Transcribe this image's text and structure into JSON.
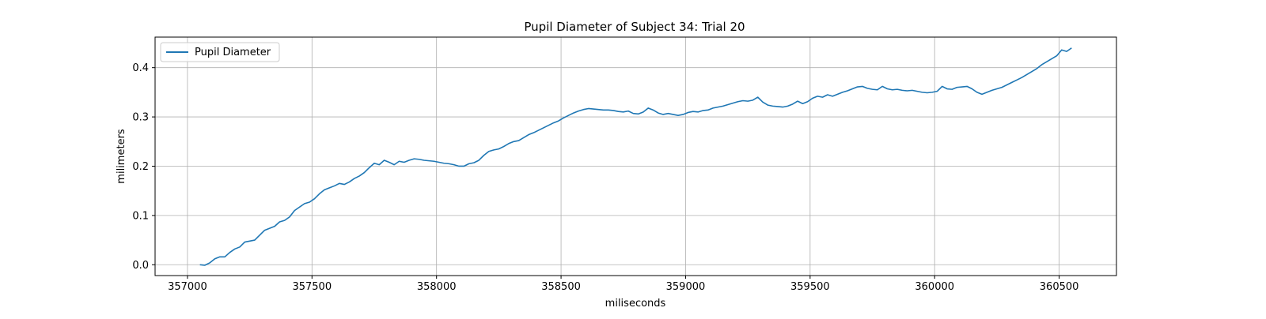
{
  "chart_data": {
    "type": "line",
    "title": "Pupil Diameter of Subject 34: Trial 20",
    "xlabel": "miliseconds",
    "ylabel": "milimeters",
    "xlim": [
      356870,
      360730
    ],
    "ylim": [
      -0.022,
      0.462
    ],
    "xticks": [
      357000,
      357500,
      358000,
      358500,
      359000,
      359500,
      360000,
      360500
    ],
    "xtick_labels": [
      "357000",
      "357500",
      "358000",
      "358500",
      "359000",
      "359500",
      "360000",
      "360500"
    ],
    "yticks": [
      0.0,
      0.1,
      0.2,
      0.3,
      0.4
    ],
    "ytick_labels": [
      "0.0",
      "0.1",
      "0.2",
      "0.3",
      "0.4"
    ],
    "grid": true,
    "legend_position": "upper-left",
    "series": [
      {
        "name": "Pupil Diameter",
        "color": "#1f77b4",
        "points": [
          [
            357050,
            0.0
          ],
          [
            357070,
            -0.001
          ],
          [
            357090,
            0.004
          ],
          [
            357110,
            0.012
          ],
          [
            357130,
            0.016
          ],
          [
            357150,
            0.016
          ],
          [
            357170,
            0.025
          ],
          [
            357190,
            0.032
          ],
          [
            357210,
            0.036
          ],
          [
            357230,
            0.046
          ],
          [
            357250,
            0.048
          ],
          [
            357270,
            0.05
          ],
          [
            357290,
            0.06
          ],
          [
            357310,
            0.07
          ],
          [
            357330,
            0.074
          ],
          [
            357350,
            0.078
          ],
          [
            357370,
            0.087
          ],
          [
            357390,
            0.09
          ],
          [
            357410,
            0.097
          ],
          [
            357430,
            0.11
          ],
          [
            357450,
            0.117
          ],
          [
            357470,
            0.124
          ],
          [
            357490,
            0.127
          ],
          [
            357510,
            0.134
          ],
          [
            357530,
            0.144
          ],
          [
            357550,
            0.152
          ],
          [
            357570,
            0.156
          ],
          [
            357590,
            0.16
          ],
          [
            357610,
            0.165
          ],
          [
            357630,
            0.163
          ],
          [
            357650,
            0.168
          ],
          [
            357670,
            0.175
          ],
          [
            357690,
            0.18
          ],
          [
            357710,
            0.187
          ],
          [
            357730,
            0.197
          ],
          [
            357750,
            0.206
          ],
          [
            357770,
            0.203
          ],
          [
            357790,
            0.212
          ],
          [
            357810,
            0.208
          ],
          [
            357830,
            0.203
          ],
          [
            357850,
            0.21
          ],
          [
            357870,
            0.208
          ],
          [
            357890,
            0.212
          ],
          [
            357910,
            0.215
          ],
          [
            357930,
            0.214
          ],
          [
            357950,
            0.212
          ],
          [
            357970,
            0.211
          ],
          [
            357990,
            0.21
          ],
          [
            358010,
            0.208
          ],
          [
            358030,
            0.206
          ],
          [
            358050,
            0.205
          ],
          [
            358070,
            0.203
          ],
          [
            358090,
            0.2
          ],
          [
            358110,
            0.2
          ],
          [
            358130,
            0.205
          ],
          [
            358150,
            0.207
          ],
          [
            358170,
            0.212
          ],
          [
            358190,
            0.222
          ],
          [
            358210,
            0.23
          ],
          [
            358230,
            0.233
          ],
          [
            358250,
            0.235
          ],
          [
            358270,
            0.24
          ],
          [
            358290,
            0.246
          ],
          [
            358310,
            0.25
          ],
          [
            358330,
            0.252
          ],
          [
            358350,
            0.258
          ],
          [
            358370,
            0.264
          ],
          [
            358390,
            0.268
          ],
          [
            358410,
            0.273
          ],
          [
            358430,
            0.278
          ],
          [
            358450,
            0.283
          ],
          [
            358470,
            0.288
          ],
          [
            358490,
            0.292
          ],
          [
            358510,
            0.298
          ],
          [
            358530,
            0.303
          ],
          [
            358550,
            0.308
          ],
          [
            358570,
            0.312
          ],
          [
            358590,
            0.315
          ],
          [
            358610,
            0.317
          ],
          [
            358630,
            0.316
          ],
          [
            358650,
            0.315
          ],
          [
            358670,
            0.314
          ],
          [
            358690,
            0.314
          ],
          [
            358710,
            0.313
          ],
          [
            358730,
            0.311
          ],
          [
            358750,
            0.31
          ],
          [
            358770,
            0.312
          ],
          [
            358790,
            0.307
          ],
          [
            358810,
            0.306
          ],
          [
            358830,
            0.31
          ],
          [
            358850,
            0.318
          ],
          [
            358870,
            0.314
          ],
          [
            358890,
            0.308
          ],
          [
            358910,
            0.305
          ],
          [
            358930,
            0.307
          ],
          [
            358950,
            0.305
          ],
          [
            358970,
            0.303
          ],
          [
            358990,
            0.305
          ],
          [
            359010,
            0.309
          ],
          [
            359030,
            0.311
          ],
          [
            359050,
            0.31
          ],
          [
            359070,
            0.313
          ],
          [
            359090,
            0.314
          ],
          [
            359110,
            0.318
          ],
          [
            359130,
            0.32
          ],
          [
            359150,
            0.322
          ],
          [
            359170,
            0.325
          ],
          [
            359190,
            0.328
          ],
          [
            359210,
            0.331
          ],
          [
            359230,
            0.333
          ],
          [
            359250,
            0.332
          ],
          [
            359270,
            0.334
          ],
          [
            359290,
            0.34
          ],
          [
            359310,
            0.33
          ],
          [
            359330,
            0.324
          ],
          [
            359350,
            0.322
          ],
          [
            359370,
            0.321
          ],
          [
            359390,
            0.32
          ],
          [
            359410,
            0.322
          ],
          [
            359430,
            0.326
          ],
          [
            359450,
            0.332
          ],
          [
            359470,
            0.327
          ],
          [
            359490,
            0.331
          ],
          [
            359510,
            0.338
          ],
          [
            359530,
            0.342
          ],
          [
            359550,
            0.34
          ],
          [
            359570,
            0.345
          ],
          [
            359590,
            0.342
          ],
          [
            359610,
            0.346
          ],
          [
            359630,
            0.35
          ],
          [
            359650,
            0.353
          ],
          [
            359670,
            0.357
          ],
          [
            359690,
            0.361
          ],
          [
            359710,
            0.362
          ],
          [
            359730,
            0.358
          ],
          [
            359750,
            0.356
          ],
          [
            359770,
            0.355
          ],
          [
            359790,
            0.362
          ],
          [
            359810,
            0.357
          ],
          [
            359830,
            0.355
          ],
          [
            359850,
            0.356
          ],
          [
            359870,
            0.354
          ],
          [
            359890,
            0.353
          ],
          [
            359910,
            0.354
          ],
          [
            359930,
            0.352
          ],
          [
            359950,
            0.35
          ],
          [
            359970,
            0.349
          ],
          [
            359990,
            0.35
          ],
          [
            360010,
            0.352
          ],
          [
            360030,
            0.362
          ],
          [
            360050,
            0.357
          ],
          [
            360070,
            0.356
          ],
          [
            360090,
            0.36
          ],
          [
            360110,
            0.361
          ],
          [
            360130,
            0.362
          ],
          [
            360150,
            0.357
          ],
          [
            360170,
            0.35
          ],
          [
            360190,
            0.346
          ],
          [
            360210,
            0.35
          ],
          [
            360230,
            0.354
          ],
          [
            360250,
            0.357
          ],
          [
            360270,
            0.36
          ],
          [
            360290,
            0.365
          ],
          [
            360310,
            0.37
          ],
          [
            360330,
            0.375
          ],
          [
            360350,
            0.38
          ],
          [
            360370,
            0.386
          ],
          [
            360390,
            0.392
          ],
          [
            360410,
            0.398
          ],
          [
            360430,
            0.406
          ],
          [
            360450,
            0.412
          ],
          [
            360470,
            0.418
          ],
          [
            360490,
            0.424
          ],
          [
            360510,
            0.436
          ],
          [
            360530,
            0.433
          ],
          [
            360550,
            0.44
          ]
        ]
      }
    ]
  }
}
